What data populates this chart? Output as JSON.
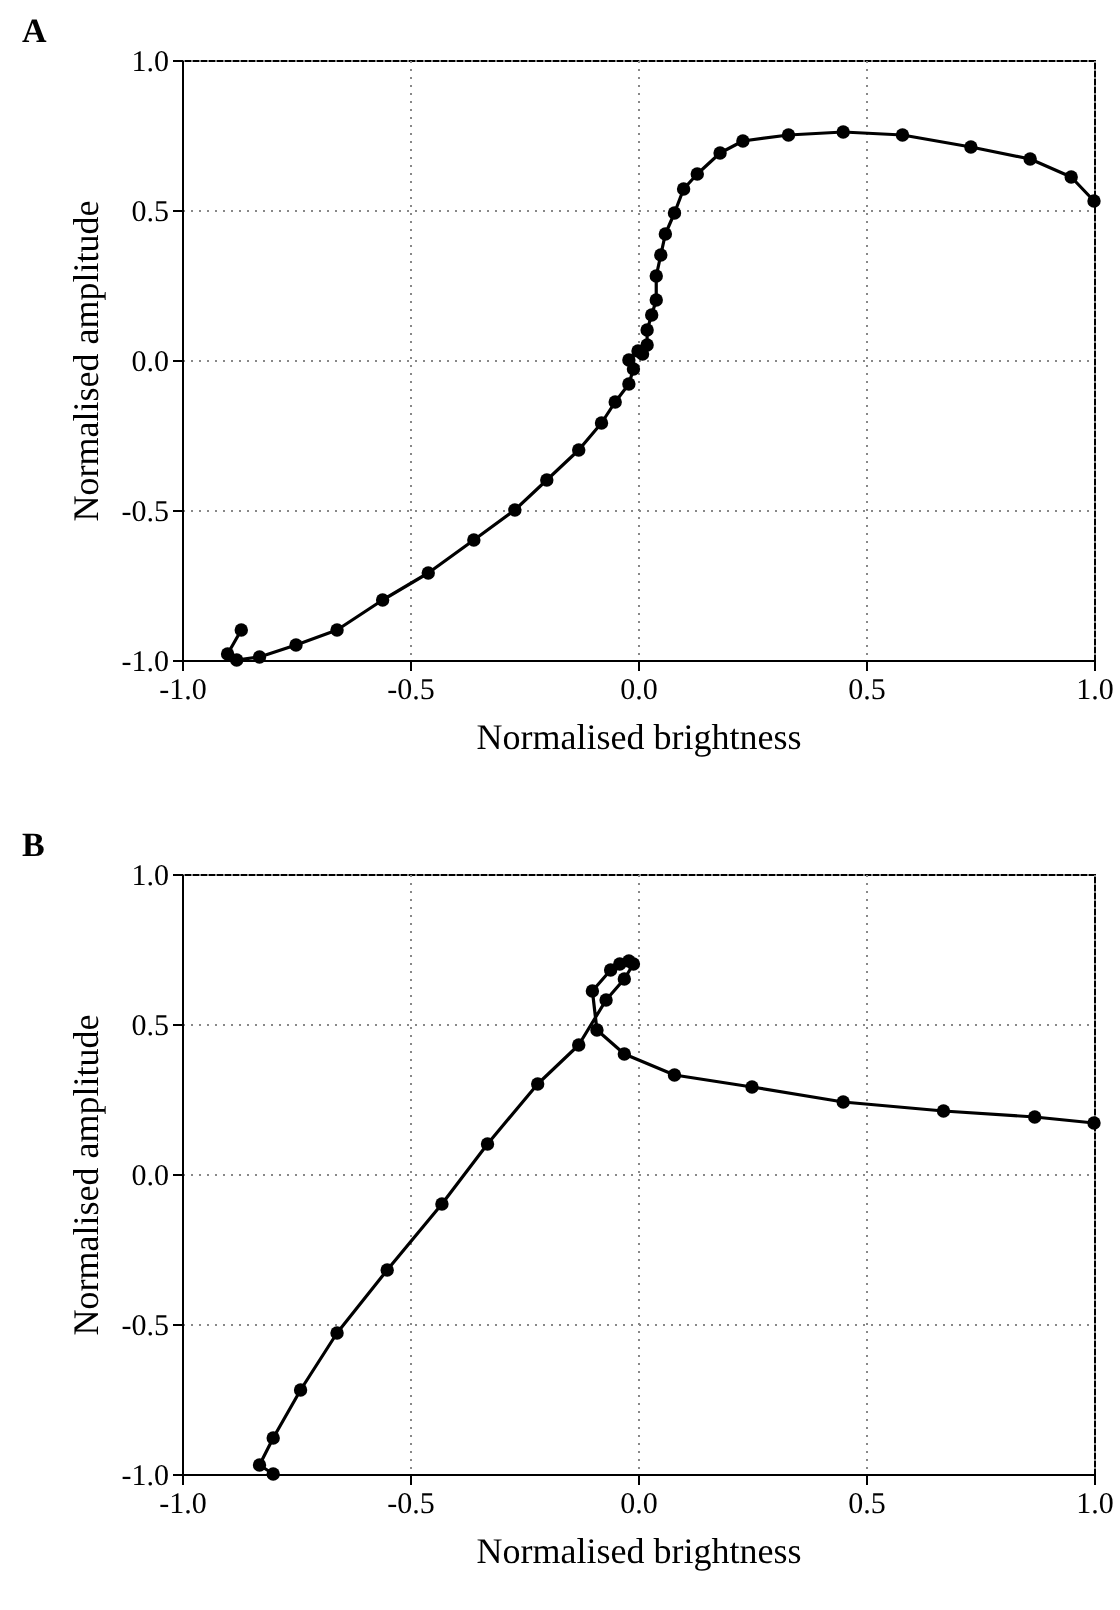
{
  "chart_data": [
    {
      "type": "line",
      "title": "A",
      "xlabel": "Normalised brightness",
      "ylabel": "Normalised amplitude",
      "xlim": [
        -1,
        1
      ],
      "ylim": [
        -1,
        1
      ],
      "xticks": [
        {
          "value": -1,
          "label": "-1.0"
        },
        {
          "value": -0.5,
          "label": "-0.5"
        },
        {
          "value": 0,
          "label": "0.0"
        },
        {
          "value": 0.5,
          "label": "0.5"
        },
        {
          "value": 1,
          "label": "1.0"
        }
      ],
      "yticks": [
        {
          "value": -1,
          "label": "-1.0"
        },
        {
          "value": -0.5,
          "label": "-0.5"
        },
        {
          "value": 0,
          "label": "0.0"
        },
        {
          "value": 0.5,
          "label": "0.5"
        },
        {
          "value": 1,
          "label": "1.0"
        }
      ],
      "grid": true,
      "marker": "circle",
      "line_style": "solid",
      "series": [
        {
          "color": "#000000",
          "x": [
            -0.87,
            -0.9,
            -0.88,
            -0.83,
            -0.75,
            -0.66,
            -0.56,
            -0.46,
            -0.36,
            -0.27,
            -0.2,
            -0.13,
            -0.08,
            -0.05,
            -0.02,
            -0.01,
            -0.02,
            0.0,
            0.01,
            0.02,
            0.02,
            0.03,
            0.04,
            0.04,
            0.05,
            0.06,
            0.08,
            0.1,
            0.13,
            0.18,
            0.23,
            0.33,
            0.45,
            0.58,
            0.73,
            0.86,
            0.95,
            1.0
          ],
          "values": [
            -0.9,
            -0.98,
            -1.0,
            -0.99,
            -0.95,
            -0.9,
            -0.8,
            -0.71,
            -0.6,
            -0.5,
            -0.4,
            -0.3,
            -0.21,
            -0.14,
            -0.08,
            -0.03,
            0.0,
            0.03,
            0.02,
            0.05,
            0.1,
            0.15,
            0.2,
            0.28,
            0.35,
            0.42,
            0.49,
            0.57,
            0.62,
            0.69,
            0.73,
            0.75,
            0.76,
            0.75,
            0.71,
            0.67,
            0.61,
            0.53
          ]
        }
      ]
    },
    {
      "type": "line",
      "title": "B",
      "xlabel": "Normalised brightness",
      "ylabel": "Normalised amplitude",
      "xlim": [
        -1,
        1
      ],
      "ylim": [
        -1,
        1
      ],
      "xticks": [
        {
          "value": -1,
          "label": "-1.0"
        },
        {
          "value": -0.5,
          "label": "-0.5"
        },
        {
          "value": 0,
          "label": "0.0"
        },
        {
          "value": 0.5,
          "label": "0.5"
        },
        {
          "value": 1,
          "label": "1.0"
        }
      ],
      "yticks": [
        {
          "value": -1,
          "label": "-1.0"
        },
        {
          "value": -0.5,
          "label": "-0.5"
        },
        {
          "value": 0,
          "label": "0.0"
        },
        {
          "value": 0.5,
          "label": "0.5"
        },
        {
          "value": 1,
          "label": "1.0"
        }
      ],
      "grid": true,
      "marker": "circle",
      "line_style": "solid",
      "series": [
        {
          "color": "#000000",
          "x": [
            -0.8,
            -0.83,
            -0.8,
            -0.74,
            -0.66,
            -0.55,
            -0.43,
            -0.33,
            -0.22,
            -0.13,
            -0.07,
            -0.03,
            -0.01,
            -0.02,
            -0.04,
            -0.06,
            -0.1,
            -0.09,
            -0.03,
            0.08,
            0.25,
            0.45,
            0.67,
            0.87,
            1.0
          ],
          "values": [
            -1.0,
            -0.97,
            -0.88,
            -0.72,
            -0.53,
            -0.32,
            -0.1,
            0.1,
            0.3,
            0.43,
            0.58,
            0.65,
            0.7,
            0.71,
            0.7,
            0.68,
            0.61,
            0.48,
            0.4,
            0.33,
            0.29,
            0.24,
            0.21,
            0.19,
            0.17
          ]
        }
      ]
    }
  ]
}
